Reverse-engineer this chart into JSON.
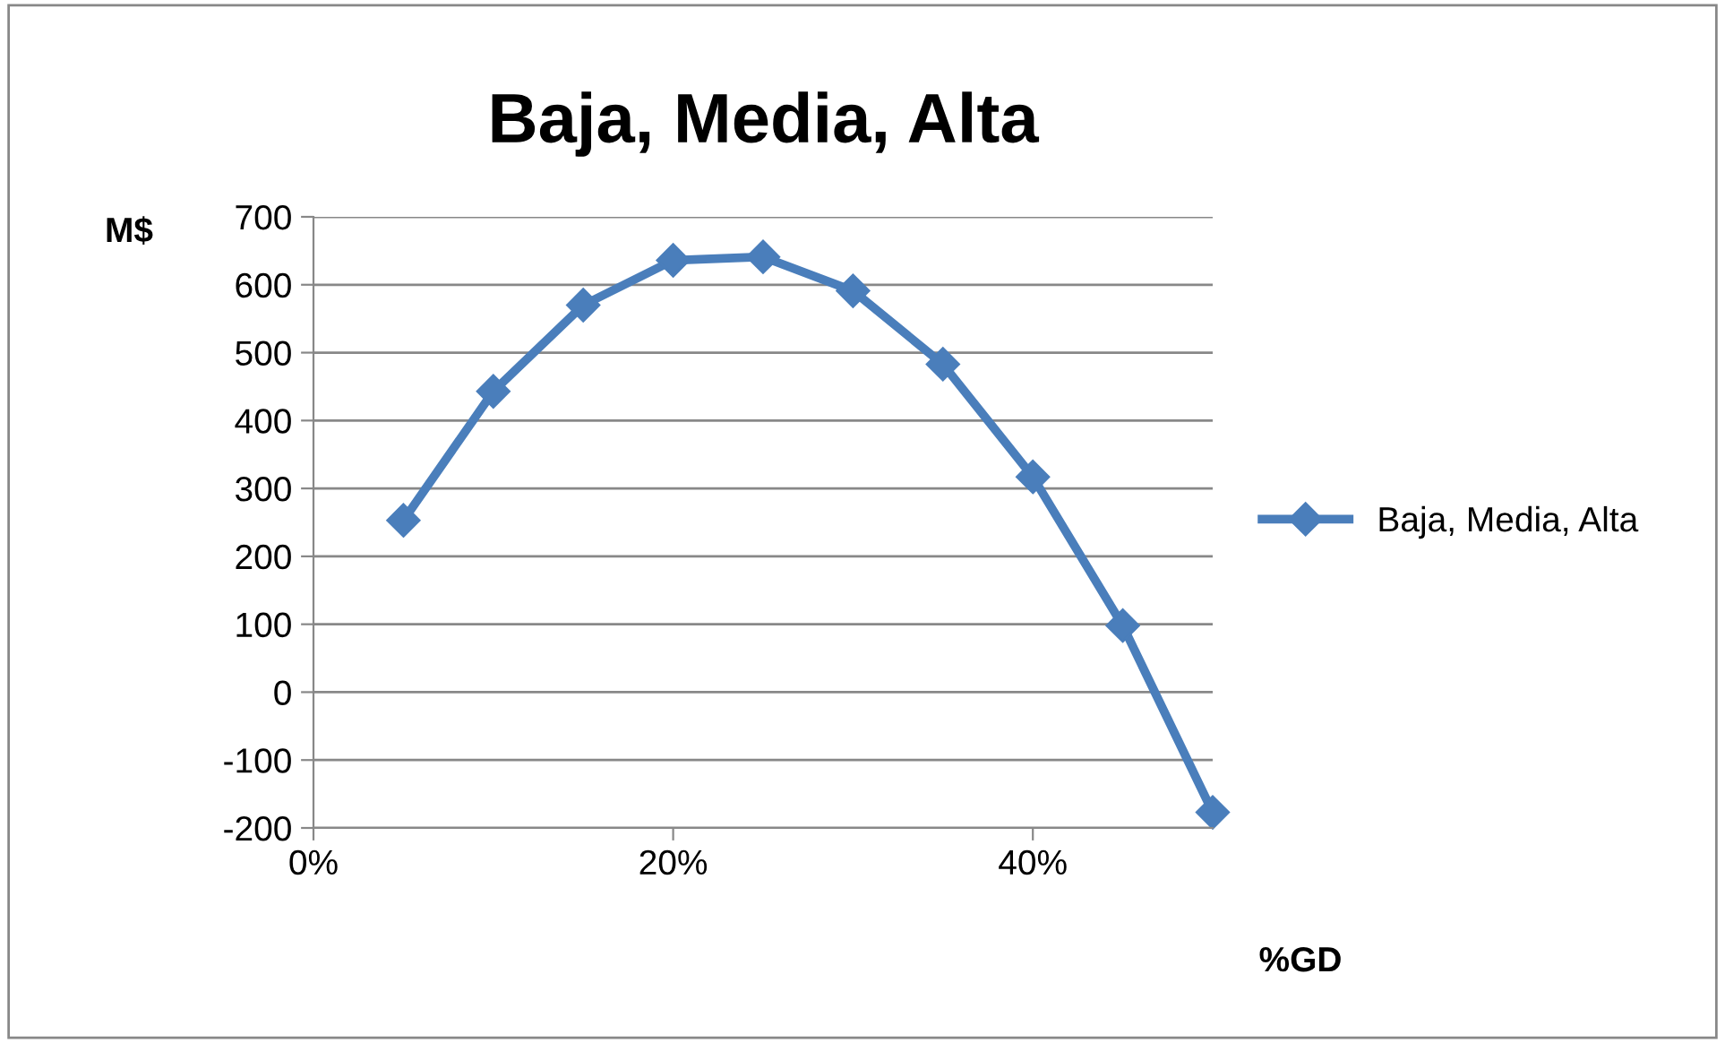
{
  "chart_data": {
    "type": "line",
    "title": "Baja, Media, Alta",
    "xlabel": "%GD",
    "ylabel": "M$",
    "x": [
      5,
      10,
      15,
      20,
      25,
      30,
      35,
      40,
      45,
      50
    ],
    "series": [
      {
        "name": "Baja, Media, Alta",
        "color": "#4a7ebb",
        "values": [
          253,
          443,
          570,
          636,
          641,
          591,
          483,
          317,
          98,
          -177
        ]
      }
    ],
    "xlim": [
      0,
      50
    ],
    "xticks": [
      {
        "value": 0,
        "label": "0%"
      },
      {
        "value": 20,
        "label": "20%"
      },
      {
        "value": 40,
        "label": "40%"
      }
    ],
    "ylim": [
      -200,
      700
    ],
    "yticks": [
      -200,
      -100,
      0,
      100,
      200,
      300,
      400,
      500,
      600,
      700
    ],
    "grid": "y",
    "legend": "right",
    "marker": "diamond",
    "line_style": "solid"
  }
}
